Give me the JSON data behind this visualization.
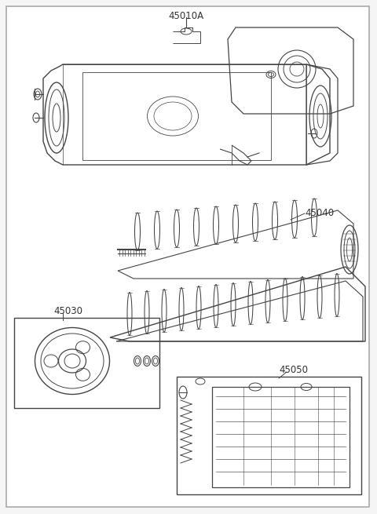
{
  "title": "45010A",
  "bg_color": "#f5f5f5",
  "border_color": "#999999",
  "line_color": "#444444",
  "label_45040": "45040",
  "label_45030": "45030",
  "label_45050": "45050",
  "fig_width": 4.8,
  "fig_height": 6.55,
  "dpi": 100
}
